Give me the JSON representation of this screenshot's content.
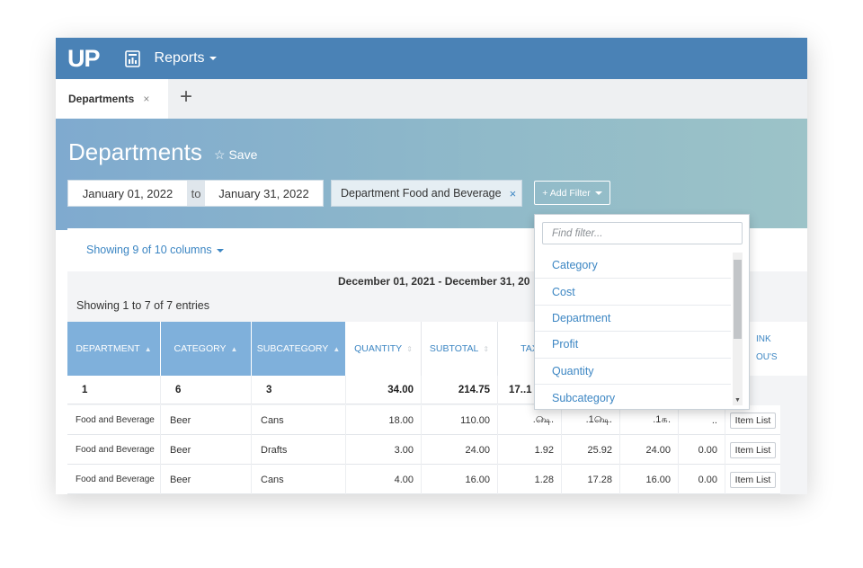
{
  "app": {
    "logo": "UP",
    "nav_label": "Reports"
  },
  "tabs": [
    {
      "label": "Departments",
      "close": "×"
    }
  ],
  "tab_add": "+",
  "page": {
    "title": "Departments",
    "save_label": "Save"
  },
  "date_range": {
    "from": "January 01, 2022",
    "separator": "to",
    "to": "January 31, 2022"
  },
  "filter_chip": {
    "label": "Department Food and Beverage",
    "remove": "×"
  },
  "add_filter_label": "+ Add Filter",
  "columns_toggle": "Showing 9 of 10 columns",
  "period_label": "December 01, 2021 - December 31, 20",
  "entries_label": "Showing 1 to 7 of 7 entries",
  "table": {
    "headers": [
      "DEPARTMENT",
      "CATEGORY",
      "SUBCATEGORY",
      "QUANTITY",
      "SUBTOTAL",
      "TAX"
    ],
    "edge_header_lines": [
      "INK",
      "OU'S"
    ],
    "totals": [
      "1",
      "6",
      "3",
      "34.00",
      "214.75",
      "17..1"
    ],
    "rows": [
      {
        "department": "Food and Beverage",
        "category": "Beer",
        "subcategory": "Cans",
        "quantity": "18.00",
        "subtotal": "110.00",
        "tax": ".௸.஀",
        "total": ".1௸.஀",
        "cost": ".1௧஀.஀஀",
        "discount": ".஀.஀஀",
        "action": "Item List"
      },
      {
        "department": "Food and Beverage",
        "category": "Beer",
        "subcategory": "Drafts",
        "quantity": "3.00",
        "subtotal": "24.00",
        "tax": "1.92",
        "total": "25.92",
        "cost": "24.00",
        "discount": "0.00",
        "action": "Item List"
      },
      {
        "department": "Food and Beverage",
        "category": "Beer",
        "subcategory": "Cans",
        "quantity": "4.00",
        "subtotal": "16.00",
        "tax": "1.28",
        "total": "17.28",
        "cost": "16.00",
        "discount": "0.00",
        "action": "Item List"
      }
    ]
  },
  "filter_dropdown": {
    "placeholder": "Find filter...",
    "options": [
      "Category",
      "Cost",
      "Department",
      "Profit",
      "Quantity",
      "Subcategory"
    ]
  },
  "colors": {
    "topbar": "#4a82b6",
    "link": "#3c86c3",
    "sorted_header": "#7fb0db"
  }
}
